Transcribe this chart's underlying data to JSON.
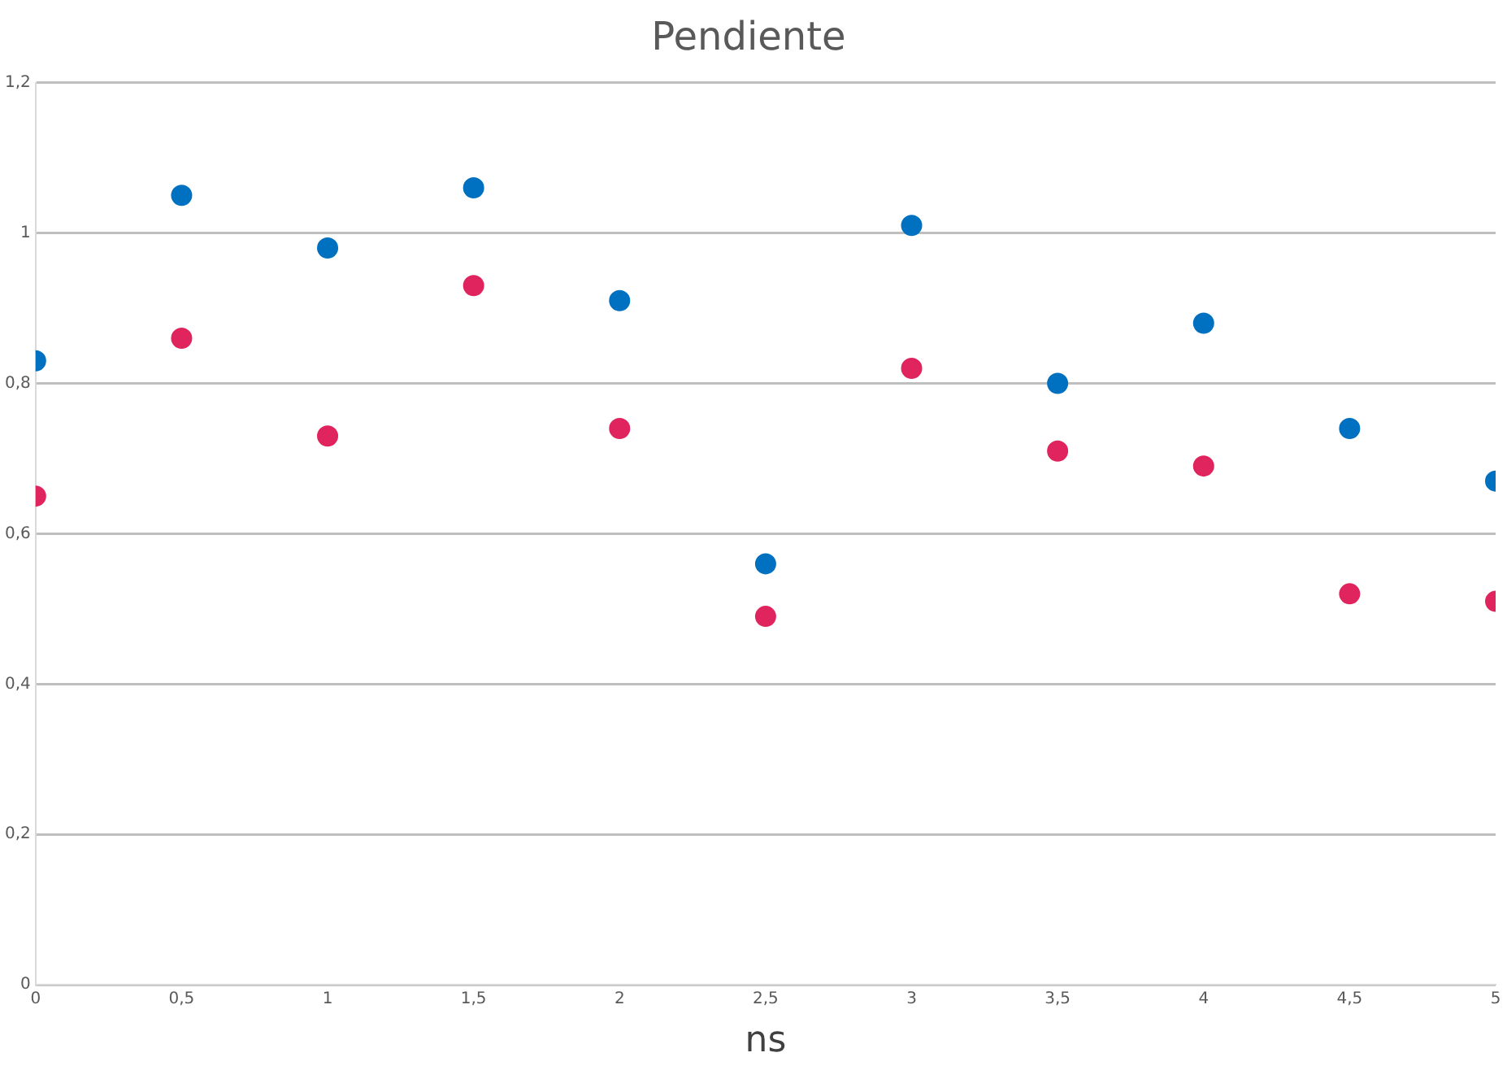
{
  "chart_data": {
    "type": "scatter",
    "title": "Pendiente",
    "xlabel": "ns",
    "x": [
      0,
      0.5,
      1,
      1.5,
      2,
      2.5,
      3,
      3.5,
      4,
      4.5,
      5
    ],
    "series": [
      {
        "color": "#0070c0",
        "values": [
          0.83,
          1.05,
          0.98,
          1.06,
          0.91,
          0.56,
          1.01,
          0.8,
          0.88,
          0.74,
          0.67
        ]
      },
      {
        "color": "#e0245e",
        "values": [
          0.65,
          0.86,
          0.73,
          0.93,
          0.74,
          0.49,
          0.82,
          0.71,
          0.69,
          0.52,
          0.51
        ]
      }
    ],
    "xlim": [
      0,
      5
    ],
    "xticks": [
      0,
      {
        "value": 0.5,
        "label": "0,5"
      },
      1,
      {
        "value": 1.5,
        "label": "1,5"
      },
      2,
      {
        "value": 2.5,
        "label": "2,5"
      },
      3,
      {
        "value": 3.5,
        "label": "3,5"
      },
      4,
      {
        "value": 4.5,
        "label": "4,5"
      },
      5
    ],
    "ylim": [
      0,
      1.2
    ],
    "yticks": [
      0,
      {
        "value": 0.2,
        "label": "0,2"
      },
      {
        "value": 0.4,
        "label": "0,4"
      },
      {
        "value": 0.6,
        "label": "0,6"
      },
      {
        "value": 0.8,
        "label": "0,8"
      },
      1,
      {
        "value": 1.2,
        "label": "1,2"
      }
    ],
    "grid": "y",
    "legend": false,
    "marker": "circle"
  }
}
